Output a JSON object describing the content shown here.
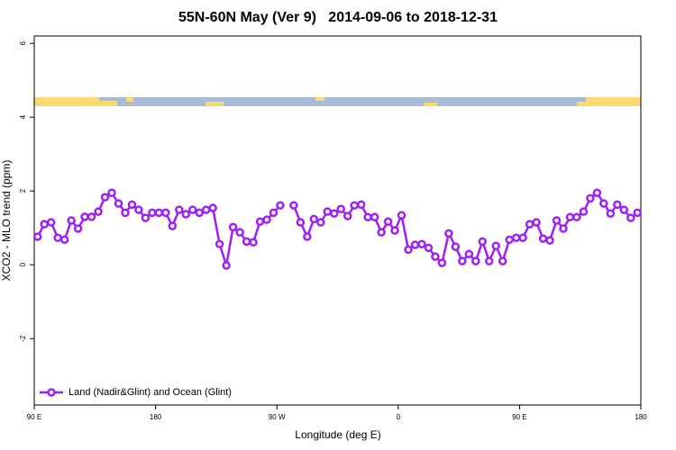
{
  "chart_data": {
    "type": "line",
    "title": "55N-60N May (Ver 9)   2014-09-06 to 2018-12-31",
    "xlabel": "Longitude (deg E)",
    "ylabel": "XCO2 - MLO trend (ppm)",
    "xlim": [
      90,
      540
    ],
    "ylim": [
      -3.8,
      6.2
    ],
    "xticks": [
      {
        "value": 90,
        "label": "90 E"
      },
      180,
      {
        "value": 270,
        "label": "90 W"
      },
      {
        "value": 360,
        "label": "0"
      },
      {
        "value": 450,
        "label": "90 E"
      },
      {
        "value": 540,
        "label": "180"
      }
    ],
    "yticks": [
      -2,
      0,
      2,
      4,
      6
    ],
    "legend": "lower left",
    "x": [
      92.5,
      97.5,
      102.5,
      107.5,
      112.5,
      117.5,
      122.5,
      127.5,
      132.5,
      137.5,
      142.5,
      147.5,
      152.5,
      157.5,
      162.5,
      167.5,
      172.5,
      177.5,
      182.5,
      187.5,
      192.5,
      197.5,
      202.5,
      207.5,
      212.5,
      217.5,
      222.5,
      227.5,
      232.5,
      237.5,
      242.5,
      247.5,
      252.5,
      257.5,
      262.5,
      267.5,
      272.5,
      277.5,
      282.5,
      287.5,
      292.5,
      297.5,
      302.5,
      307.5,
      312.5,
      317.5,
      322.5,
      327.5,
      332.5,
      337.5,
      342.5,
      347.5,
      352.5,
      357.5,
      362.5,
      367.5,
      372.5,
      377.5,
      382.5,
      387.5,
      392.5,
      397.5,
      402.5,
      407.5,
      412.5,
      417.5,
      422.5,
      427.5,
      432.5,
      437.5,
      442.5,
      447.5,
      452.5,
      457.5,
      462.5,
      467.5,
      472.5,
      477.5,
      482.5,
      487.5,
      492.5,
      497.5,
      502.5,
      507.5,
      512.5,
      517.5,
      522.5,
      527.5,
      532.5,
      537.5
    ],
    "series": [
      {
        "name": "Land (Nadir&Glint) and Ocean (Glint)",
        "color": "#a020f0",
        "values": [
          0.76,
          1.1,
          1.15,
          0.73,
          0.68,
          1.2,
          0.98,
          1.3,
          1.3,
          1.44,
          1.83,
          1.95,
          1.66,
          1.41,
          1.63,
          1.49,
          1.27,
          1.41,
          1.41,
          1.41,
          1.05,
          1.49,
          1.37,
          1.49,
          1.41,
          1.49,
          1.54,
          0.56,
          -0.02,
          1.02,
          0.88,
          0.63,
          0.61,
          1.17,
          1.22,
          1.41,
          1.61,
          null,
          1.61,
          1.15,
          0.76,
          1.24,
          1.15,
          1.44,
          1.39,
          1.51,
          1.32,
          1.61,
          1.63,
          1.29,
          1.29,
          0.88,
          1.17,
          0.93,
          1.34,
          0.41,
          0.54,
          0.56,
          0.46,
          0.22,
          0.05,
          0.85,
          0.49,
          0.1,
          0.29,
          0.1,
          0.63,
          0.1,
          0.51,
          0.1,
          0.68,
          0.73,
          0.73,
          1.1,
          1.15,
          0.71,
          0.66,
          1.2,
          0.98,
          1.29,
          1.29,
          1.44,
          1.8,
          1.95,
          1.66,
          1.39,
          1.63,
          1.49,
          1.27,
          1.41
        ]
      }
    ]
  }
}
